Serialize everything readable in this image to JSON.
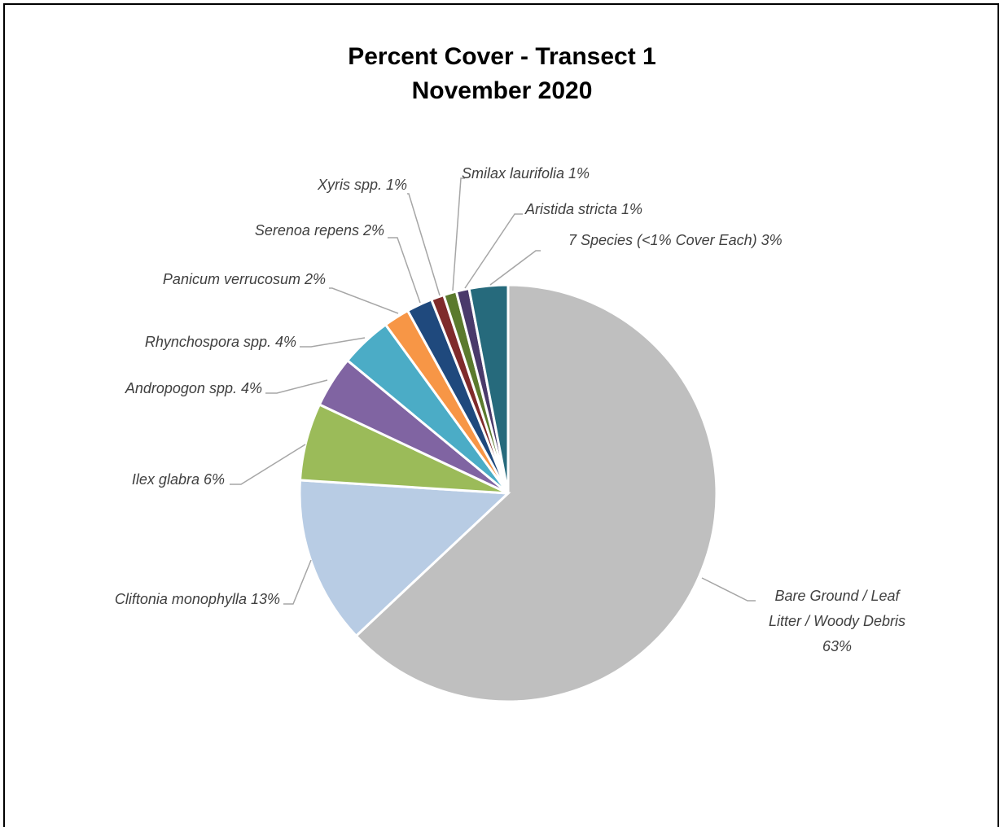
{
  "chart_data": {
    "type": "pie",
    "title": "Percent Cover - Transect 1",
    "subtitle": "November 2020",
    "slices": [
      {
        "label": "Bare Ground / Leaf Litter / Woody Debris",
        "label_lines": [
          "Bare Ground / Leaf",
          "Litter / Woody Debris",
          "63%"
        ],
        "value": 63,
        "color": "#bfbfbf"
      },
      {
        "label": "Cliftonia monophylla",
        "label_lines": [
          "Cliftonia monophylla 13%"
        ],
        "value": 13,
        "color": "#b8cce4"
      },
      {
        "label": "Ilex glabra",
        "label_lines": [
          "Ilex glabra 6%"
        ],
        "value": 6,
        "color": "#9bbb59"
      },
      {
        "label": "Andropogon spp.",
        "label_lines": [
          "Andropogon spp. 4%"
        ],
        "value": 4,
        "color": "#8064a2"
      },
      {
        "label": "Rhynchospora spp.",
        "label_lines": [
          "Rhynchospora spp. 4%"
        ],
        "value": 4,
        "color": "#4bacc6"
      },
      {
        "label": "Panicum verrucosum",
        "label_lines": [
          "Panicum verrucosum 2%"
        ],
        "value": 2,
        "color": "#f79646"
      },
      {
        "label": "Serenoa repens",
        "label_lines": [
          "Serenoa repens 2%"
        ],
        "value": 2,
        "color": "#1f497d"
      },
      {
        "label": "Xyris spp.",
        "label_lines": [
          "Xyris spp. 1%"
        ],
        "value": 1,
        "color": "#7f2b2b"
      },
      {
        "label": "Smilax laurifolia",
        "label_lines": [
          "Smilax laurifolia 1%"
        ],
        "value": 1,
        "color": "#5b7a2d"
      },
      {
        "label": "Aristida stricta",
        "label_lines": [
          "Aristida stricta 1%"
        ],
        "value": 1,
        "color": "#4a3a6b"
      },
      {
        "label": "7 Species (<1% Cover Each)",
        "label_lines": [
          "7 Species (<1% Cover Each) 3%"
        ],
        "value": 3,
        "color": "#266a7c"
      }
    ]
  }
}
